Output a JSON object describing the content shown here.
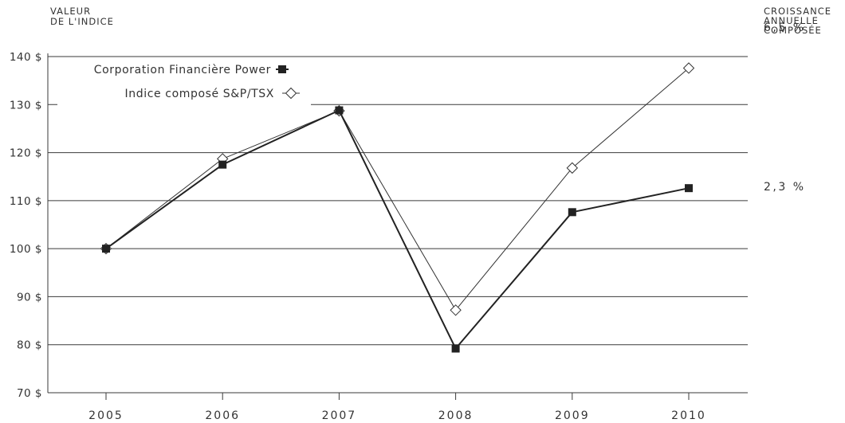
{
  "chart_data": {
    "type": "line",
    "title": "",
    "ylabel_line1": "VALEUR",
    "ylabel_line2": "DE L'INDICE",
    "growth_header": [
      "CROISSANCE",
      "ANNUELLE",
      "COMPOSÉE"
    ],
    "categories": [
      "2005",
      "2006",
      "2007",
      "2008",
      "2009",
      "2010"
    ],
    "ylim": [
      70,
      140
    ],
    "yticks": [
      70,
      80,
      90,
      100,
      110,
      120,
      130,
      140
    ],
    "ytick_labels": [
      "70 $",
      "80 $",
      "90 $",
      "100 $",
      "110 $",
      "120 $",
      "130 $",
      "140 $"
    ],
    "grid": true,
    "legend_position": "top-left",
    "series": [
      {
        "name": "Corporation Financière Power",
        "marker": "filled-square",
        "color": "#222222",
        "values": [
          100,
          117.5,
          128.8,
          79.2,
          107.6,
          112.6
        ],
        "cagr": "2,3 %"
      },
      {
        "name": "Indice composé S&P/TSX",
        "marker": "open-diamond",
        "color": "#333333",
        "values": [
          100,
          118.7,
          128.7,
          87.2,
          116.8,
          137.6
        ],
        "cagr": "6,5 %"
      }
    ]
  }
}
